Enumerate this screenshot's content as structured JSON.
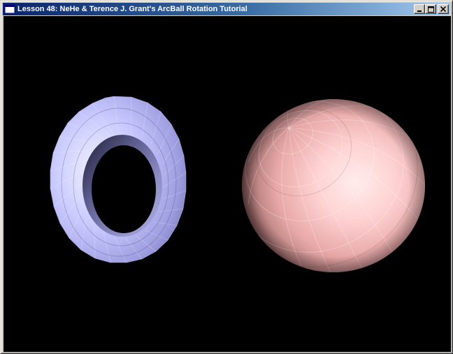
{
  "window": {
    "title": "Lesson 48: NeHe & Terence J. Grant's ArcBall Rotation Tutorial",
    "buttons": {
      "minimize_icon": "minimize-icon",
      "maximize_icon": "maximize-icon",
      "close_icon": "close-icon"
    }
  },
  "scene": {
    "background_color": "#000000",
    "objects": [
      {
        "name": "torus",
        "color": "#c8c8ff"
      },
      {
        "name": "sphere",
        "color": "#ffc8c8"
      }
    ]
  },
  "colors": {
    "titlebar_start": "#0a246a",
    "titlebar_end": "#a6caf0",
    "window_face": "#d4d0c8"
  }
}
